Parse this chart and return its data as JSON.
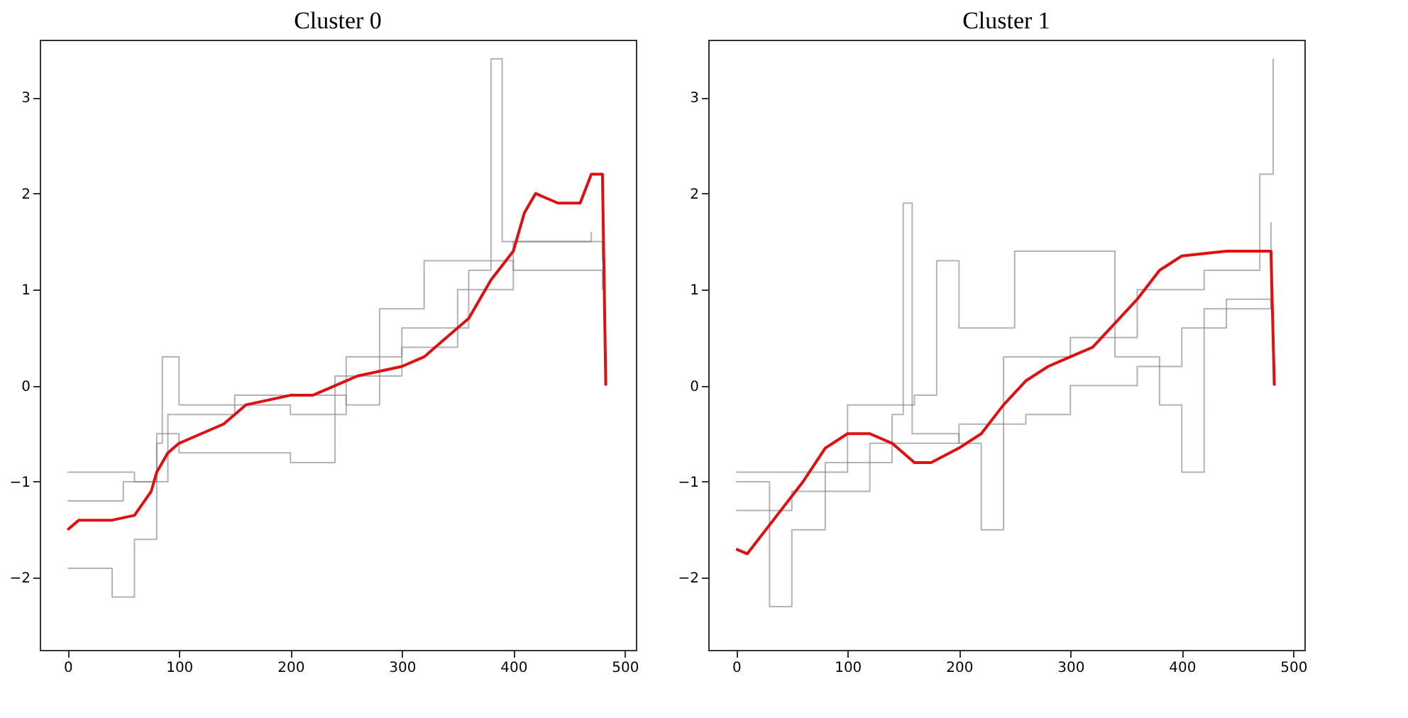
{
  "chart_data": [
    {
      "type": "line",
      "title": "Cluster 0",
      "xlim": [
        -25,
        510
      ],
      "ylim": [
        -2.75,
        3.6
      ],
      "xticks": [
        0,
        100,
        200,
        300,
        400,
        500
      ],
      "yticks": [
        -2,
        -1,
        0,
        1,
        2,
        3
      ],
      "grid": false,
      "series": [
        {
          "type": "step",
          "color": "#808080",
          "x": [
            0,
            40,
            60,
            80,
            85,
            100,
            200,
            250,
            300,
            360,
            380,
            390,
            420,
            480
          ],
          "values": [
            -1.9,
            -2.2,
            -1.6,
            -0.6,
            0.3,
            -0.2,
            -0.3,
            0.3,
            0.6,
            1.2,
            3.4,
            1.5,
            1.5,
            1.3
          ]
        },
        {
          "type": "step",
          "color": "#808080",
          "x": [
            0,
            50,
            80,
            100,
            200,
            240,
            300,
            350,
            400,
            470
          ],
          "values": [
            -1.2,
            -1.0,
            -0.5,
            -0.7,
            -0.8,
            0.1,
            0.4,
            1.0,
            1.5,
            1.6
          ]
        },
        {
          "type": "step",
          "color": "#808080",
          "x": [
            0,
            60,
            90,
            150,
            250,
            280,
            320,
            400,
            480
          ],
          "values": [
            -0.9,
            -1.0,
            -0.3,
            -0.1,
            -0.2,
            0.8,
            1.3,
            1.2,
            1.0
          ]
        },
        {
          "type": "line",
          "color": "#e01010",
          "x": [
            0,
            10,
            40,
            60,
            75,
            80,
            90,
            100,
            120,
            140,
            160,
            180,
            200,
            220,
            240,
            260,
            280,
            300,
            320,
            340,
            360,
            380,
            400,
            410,
            420,
            440,
            460,
            470,
            480,
            483
          ],
          "values": [
            -1.5,
            -1.4,
            -1.4,
            -1.35,
            -1.1,
            -0.9,
            -0.7,
            -0.6,
            -0.5,
            -0.4,
            -0.2,
            -0.15,
            -0.1,
            -0.1,
            0,
            0.1,
            0.15,
            0.2,
            0.3,
            0.5,
            0.7,
            1.1,
            1.4,
            1.8,
            2.0,
            1.9,
            1.9,
            2.2,
            2.2,
            0
          ]
        }
      ]
    },
    {
      "type": "line",
      "title": "Cluster 1",
      "xlim": [
        -25,
        510
      ],
      "ylim": [
        -2.75,
        3.6
      ],
      "xticks": [
        0,
        100,
        200,
        300,
        400,
        500
      ],
      "yticks": [
        -2,
        -1,
        0,
        1,
        2,
        3
      ],
      "grid": false,
      "series": [
        {
          "type": "step",
          "color": "#808080",
          "x": [
            0,
            30,
            50,
            80,
            140,
            150,
            158,
            200,
            220,
            240,
            300,
            360,
            420,
            470,
            482
          ],
          "values": [
            -1.0,
            -2.3,
            -1.5,
            -0.8,
            -0.3,
            1.9,
            -0.5,
            -0.6,
            -1.5,
            0.3,
            0.5,
            1.0,
            1.2,
            2.2,
            3.4
          ]
        },
        {
          "type": "step",
          "color": "#808080",
          "x": [
            0,
            60,
            100,
            160,
            180,
            200,
            250,
            330,
            340,
            380,
            400,
            420,
            480
          ],
          "values": [
            -0.9,
            -0.9,
            -0.2,
            -0.1,
            1.3,
            0.6,
            1.4,
            1.4,
            0.3,
            -0.2,
            -0.9,
            0.8,
            1.7
          ]
        },
        {
          "type": "step",
          "color": "#808080",
          "x": [
            0,
            50,
            120,
            200,
            260,
            300,
            360,
            400,
            440,
            480
          ],
          "values": [
            -1.3,
            -1.1,
            -0.6,
            -0.4,
            -0.3,
            0.0,
            0.2,
            0.6,
            0.9,
            0.8
          ]
        },
        {
          "type": "line",
          "color": "#e01010",
          "x": [
            0,
            10,
            20,
            40,
            60,
            80,
            100,
            120,
            140,
            160,
            175,
            200,
            220,
            240,
            260,
            280,
            300,
            320,
            340,
            360,
            380,
            400,
            440,
            460,
            480,
            483
          ],
          "values": [
            -1.7,
            -1.75,
            -1.6,
            -1.3,
            -1.0,
            -0.65,
            -0.5,
            -0.5,
            -0.6,
            -0.8,
            -0.8,
            -0.65,
            -0.5,
            -0.2,
            0.05,
            0.2,
            0.3,
            0.4,
            0.65,
            0.9,
            1.2,
            1.35,
            1.4,
            1.4,
            1.4,
            0
          ]
        }
      ]
    }
  ]
}
